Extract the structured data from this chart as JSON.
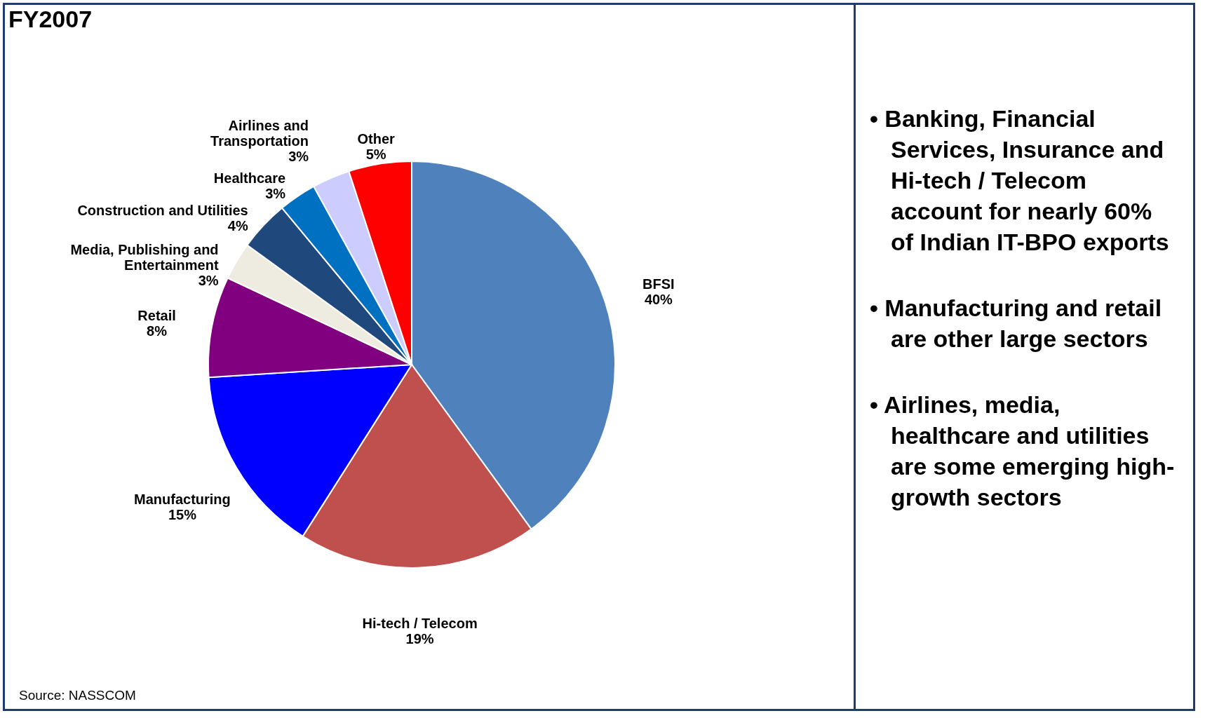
{
  "chart_data": {
    "type": "pie",
    "title": "FY2007",
    "categories": [
      "BFSI",
      "Hi-tech / Telecom",
      "Manufacturing",
      "Retail",
      "Media, Publishing and Entertainment",
      "Construction and Utilities",
      "Healthcare",
      "Airlines and Transportation",
      "Other"
    ],
    "values": [
      40,
      19,
      15,
      8,
      3,
      4,
      3,
      3,
      5
    ],
    "value_labels": [
      "40%",
      "19%",
      "15%",
      "8%",
      "3%",
      "4%",
      "3%",
      "3%",
      "5%"
    ],
    "colors": [
      "#4f81bd",
      "#c0504d",
      "#0000ff",
      "#800080",
      "#eeece1",
      "#1f497d",
      "#0070c0",
      "#ccccff",
      "#ff0000"
    ],
    "annotations": [
      "• Banking, Financial Services, Insurance and Hi-tech / Telecom account for nearly 60% of Indian IT-BPO exports",
      "• Manufacturing and retail are other large sectors",
      "• Airlines, media, healthcare and utilities are some emerging high-growth sectors",
      "Source: NASSCOM"
    ]
  }
}
